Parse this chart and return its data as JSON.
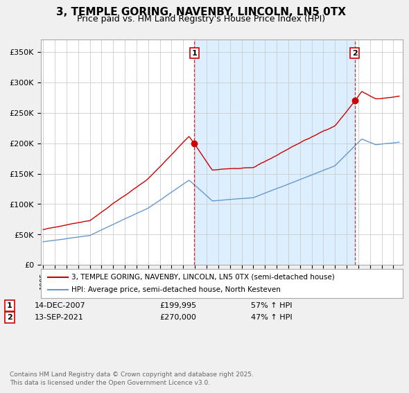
{
  "title": "3, TEMPLE GORING, NAVENBY, LINCOLN, LN5 0TX",
  "subtitle": "Price paid vs. HM Land Registry's House Price Index (HPI)",
  "title_fontsize": 11,
  "subtitle_fontsize": 9,
  "ylabel_ticks": [
    "£0",
    "£50K",
    "£100K",
    "£150K",
    "£200K",
    "£250K",
    "£300K",
    "£350K"
  ],
  "ytick_vals": [
    0,
    50000,
    100000,
    150000,
    200000,
    250000,
    300000,
    350000
  ],
  "ylim": [
    0,
    370000
  ],
  "xlim_start": 1994.8,
  "xlim_end": 2025.8,
  "background_color": "#f0f0f0",
  "plot_bg_color": "#ffffff",
  "grid_color": "#cccccc",
  "shade_color": "#ddeeff",
  "red_line_color": "#cc0000",
  "blue_line_color": "#6699cc",
  "sale1_x": 2007.95,
  "sale1_y": 199995,
  "sale1_label": "1",
  "sale2_x": 2021.7,
  "sale2_y": 270000,
  "sale2_label": "2",
  "legend_red_label": "3, TEMPLE GORING, NAVENBY, LINCOLN, LN5 0TX (semi-detached house)",
  "legend_blue_label": "HPI: Average price, semi-detached house, North Kesteven",
  "annotation1_date": "14-DEC-2007",
  "annotation1_price": "£199,995",
  "annotation1_hpi": "57% ↑ HPI",
  "annotation2_date": "13-SEP-2021",
  "annotation2_price": "£270,000",
  "annotation2_hpi": "47% ↑ HPI",
  "footer": "Contains HM Land Registry data © Crown copyright and database right 2025.\nThis data is licensed under the Open Government Licence v3.0."
}
